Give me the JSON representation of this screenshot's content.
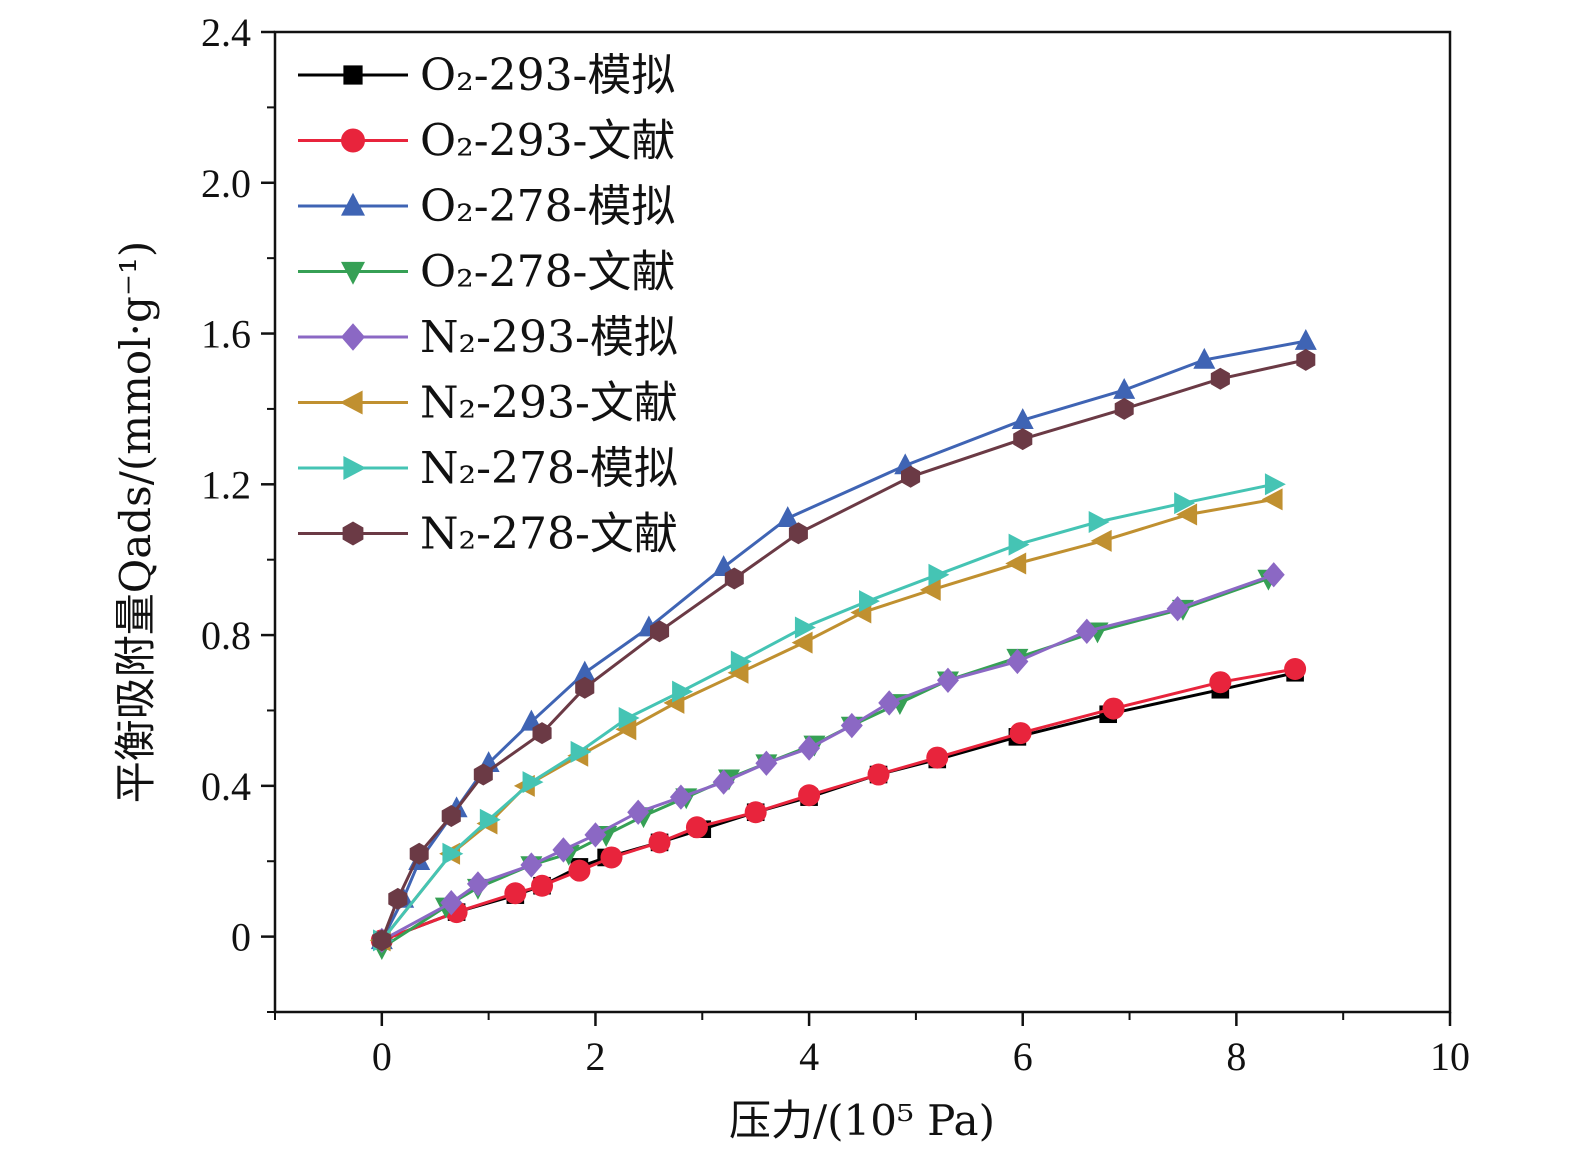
{
  "chart_data": {
    "type": "line",
    "title": "",
    "xlabel": "压力/(10⁵ Pa)",
    "ylabel": "平衡吸附量Qads/(mmol·g⁻¹)",
    "xlim": [
      -1,
      10
    ],
    "ylim": [
      -0.2,
      2.4
    ],
    "xticks": [
      0,
      2,
      4,
      6,
      8,
      10
    ],
    "xtick_labels": [
      "0",
      "2",
      "4",
      "6",
      "8",
      "10"
    ],
    "yticks": [
      0,
      0.4,
      0.8,
      1.2,
      1.6,
      2.0,
      2.4
    ],
    "ytick_labels": [
      "0",
      "0.4",
      "0.8",
      "1.2",
      "1.6",
      "2.0",
      "2.4"
    ],
    "grid": false,
    "legend_position": "top-left",
    "series": [
      {
        "name": "O₂-293-模拟",
        "color": "#000000",
        "marker": "square",
        "x": [
          0,
          0.7,
          1.25,
          1.5,
          1.85,
          2.1,
          2.6,
          3.0,
          3.5,
          4.0,
          4.65,
          5.2,
          5.95,
          6.8,
          7.85,
          8.55
        ],
        "y": [
          -0.01,
          0.065,
          0.11,
          0.135,
          0.185,
          0.21,
          0.25,
          0.285,
          0.33,
          0.37,
          0.43,
          0.47,
          0.53,
          0.59,
          0.655,
          0.7
        ]
      },
      {
        "name": "O₂-293-文献",
        "color": "#e8243c",
        "marker": "circle",
        "x": [
          0,
          0.7,
          1.25,
          1.5,
          1.85,
          2.15,
          2.6,
          2.95,
          3.5,
          4.0,
          4.65,
          5.2,
          5.98,
          6.85,
          7.85,
          8.55
        ],
        "y": [
          -0.01,
          0.065,
          0.115,
          0.135,
          0.175,
          0.21,
          0.25,
          0.29,
          0.33,
          0.375,
          0.43,
          0.475,
          0.54,
          0.605,
          0.675,
          0.71
        ]
      },
      {
        "name": "O₂-278-模拟",
        "color": "#3f64b4",
        "marker": "triangle-up",
        "x": [
          0,
          0.2,
          0.35,
          0.7,
          1.0,
          1.4,
          1.9,
          2.5,
          3.2,
          3.8,
          4.9,
          6.0,
          6.95,
          7.7,
          8.65
        ],
        "y": [
          -0.01,
          0.1,
          0.2,
          0.34,
          0.46,
          0.57,
          0.7,
          0.82,
          0.98,
          1.11,
          1.25,
          1.37,
          1.45,
          1.53,
          1.58
        ]
      },
      {
        "name": "O₂-278-文献",
        "color": "#36a055",
        "marker": "triangle-down",
        "x": [
          0,
          0.6,
          0.9,
          1.4,
          1.75,
          2.1,
          2.45,
          2.85,
          3.25,
          3.6,
          4.05,
          4.4,
          4.85,
          5.3,
          5.95,
          6.7,
          7.5,
          8.3
        ],
        "y": [
          -0.03,
          0.08,
          0.13,
          0.19,
          0.22,
          0.27,
          0.32,
          0.37,
          0.42,
          0.46,
          0.51,
          0.56,
          0.62,
          0.68,
          0.74,
          0.81,
          0.87,
          0.95
        ]
      },
      {
        "name": "N₂-293-模拟",
        "color": "#8b68c4",
        "marker": "diamond",
        "x": [
          0,
          0.65,
          0.9,
          1.4,
          1.7,
          2.0,
          2.4,
          2.8,
          3.2,
          3.6,
          4.0,
          4.4,
          4.75,
          5.3,
          5.95,
          6.6,
          7.45,
          8.35
        ],
        "y": [
          -0.01,
          0.09,
          0.14,
          0.19,
          0.23,
          0.27,
          0.33,
          0.37,
          0.41,
          0.46,
          0.5,
          0.56,
          0.62,
          0.68,
          0.73,
          0.81,
          0.87,
          0.96
        ]
      },
      {
        "name": "N₂-293-文献",
        "color": "#c09030",
        "marker": "triangle-left",
        "x": [
          0,
          0.65,
          1.0,
          1.35,
          1.85,
          2.3,
          2.75,
          3.35,
          3.95,
          4.5,
          5.15,
          5.95,
          6.75,
          7.55,
          8.35
        ],
        "y": [
          -0.01,
          0.22,
          0.3,
          0.4,
          0.48,
          0.55,
          0.62,
          0.7,
          0.78,
          0.86,
          0.92,
          0.99,
          1.05,
          1.12,
          1.16
        ]
      },
      {
        "name": "N₂-278-模拟",
        "color": "#45c4b4",
        "marker": "triangle-right",
        "x": [
          0,
          0.65,
          1.0,
          1.4,
          1.85,
          2.3,
          2.8,
          3.35,
          3.95,
          4.55,
          5.2,
          5.95,
          6.7,
          7.5,
          8.35
        ],
        "y": [
          -0.01,
          0.22,
          0.31,
          0.41,
          0.49,
          0.58,
          0.65,
          0.73,
          0.82,
          0.89,
          0.96,
          1.04,
          1.1,
          1.15,
          1.2
        ]
      },
      {
        "name": "N₂-278-文献",
        "color": "#6b3a45",
        "marker": "hexagon",
        "x": [
          0,
          0.15,
          0.35,
          0.65,
          0.95,
          1.5,
          1.9,
          2.6,
          3.3,
          3.9,
          4.95,
          6.0,
          6.95,
          7.85,
          8.65
        ],
        "y": [
          -0.01,
          0.1,
          0.22,
          0.32,
          0.43,
          0.54,
          0.66,
          0.81,
          0.95,
          1.07,
          1.22,
          1.32,
          1.4,
          1.48,
          1.53
        ]
      }
    ]
  }
}
